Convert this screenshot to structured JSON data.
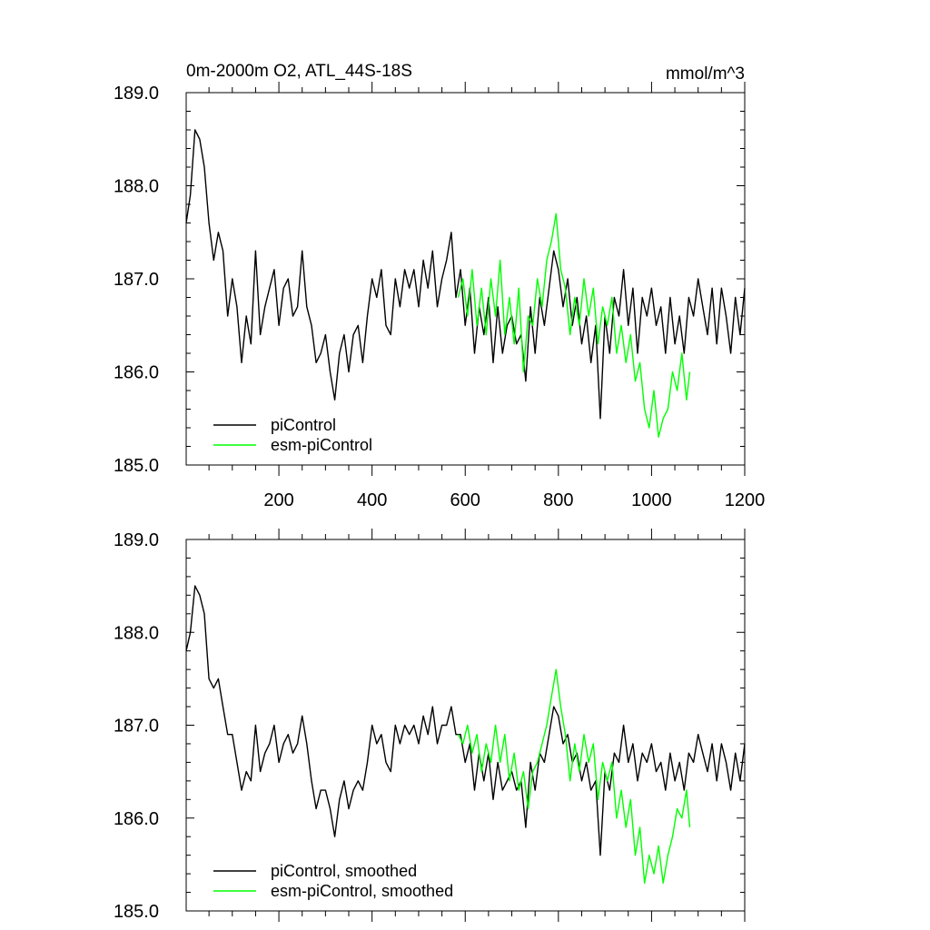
{
  "figure": {
    "title_left": "0m-2000m O2, ATL_44S-18S",
    "title_right": "mmol/m^3"
  },
  "colors": {
    "piControl": "#000000",
    "esm_piControl": "#00ff00",
    "axes": "#000000"
  },
  "chart_data": [
    {
      "type": "line",
      "xlim": [
        1,
        1200
      ],
      "ylim": [
        185.0,
        189.0
      ],
      "yticks": [
        "185.0",
        "186.0",
        "187.0",
        "188.0",
        "189.0"
      ],
      "xticks": [
        "200",
        "400",
        "600",
        "800",
        "1000",
        "1200"
      ],
      "legend_position": "bottom-left",
      "series": [
        {
          "name": "piControl",
          "color": "#000000",
          "x": [
            1,
            10,
            20,
            30,
            40,
            50,
            60,
            70,
            80,
            90,
            100,
            110,
            120,
            130,
            140,
            150,
            160,
            170,
            180,
            190,
            200,
            210,
            220,
            230,
            240,
            250,
            260,
            270,
            280,
            290,
            300,
            310,
            320,
            330,
            340,
            350,
            360,
            370,
            380,
            390,
            400,
            410,
            420,
            430,
            440,
            450,
            460,
            470,
            480,
            490,
            500,
            510,
            520,
            530,
            540,
            550,
            560,
            570,
            580,
            590,
            600,
            610,
            620,
            630,
            640,
            650,
            660,
            670,
            680,
            690,
            700,
            710,
            720,
            730,
            740,
            750,
            760,
            770,
            780,
            790,
            800,
            810,
            820,
            830,
            840,
            850,
            860,
            870,
            880,
            890,
            900,
            910,
            920,
            930,
            940,
            950,
            960,
            970,
            980,
            990,
            1000,
            1010,
            1020,
            1030,
            1040,
            1050,
            1060,
            1070,
            1080,
            1090,
            1100,
            1110,
            1120,
            1130,
            1140,
            1150,
            1160,
            1170,
            1180,
            1190,
            1200
          ],
          "y": [
            187.6,
            187.9,
            188.6,
            188.5,
            188.2,
            187.6,
            187.2,
            187.5,
            187.3,
            186.6,
            187.0,
            186.7,
            186.1,
            186.6,
            186.3,
            187.3,
            186.4,
            186.7,
            186.9,
            187.1,
            186.5,
            186.9,
            187.0,
            186.6,
            186.7,
            187.3,
            186.7,
            186.5,
            186.1,
            186.2,
            186.4,
            186.0,
            185.7,
            186.2,
            186.4,
            186.0,
            186.4,
            186.5,
            186.1,
            186.6,
            187.0,
            186.8,
            187.1,
            186.5,
            186.4,
            187.0,
            186.7,
            187.1,
            186.9,
            187.1,
            186.7,
            187.2,
            186.9,
            187.3,
            186.7,
            187.0,
            187.2,
            187.5,
            186.8,
            187.1,
            186.5,
            186.9,
            186.2,
            186.7,
            186.4,
            186.8,
            186.1,
            186.7,
            186.2,
            186.5,
            186.6,
            186.3,
            186.4,
            185.9,
            186.7,
            186.2,
            186.8,
            186.5,
            186.9,
            187.3,
            187.1,
            186.7,
            187.0,
            186.5,
            186.8,
            186.3,
            186.6,
            186.1,
            186.5,
            185.5,
            186.6,
            186.2,
            186.8,
            186.6,
            187.1,
            186.5,
            186.9,
            186.2,
            186.8,
            186.6,
            186.9,
            186.5,
            186.7,
            186.2,
            186.8,
            186.3,
            186.6,
            186.2,
            186.8,
            186.6,
            187.0,
            186.7,
            186.4,
            186.9,
            186.3,
            186.9,
            186.6,
            186.2,
            186.8,
            186.4,
            186.9
          ]
        },
        {
          "name": "esm-piControl",
          "color": "#00ff00",
          "x": [
            585,
            595,
            605,
            615,
            625,
            635,
            645,
            655,
            665,
            675,
            685,
            695,
            705,
            715,
            725,
            735,
            745,
            755,
            765,
            775,
            785,
            795,
            805,
            815,
            825,
            835,
            845,
            855,
            865,
            875,
            885,
            895,
            905,
            915,
            925,
            935,
            945,
            955,
            965,
            975,
            985,
            995,
            1005,
            1015,
            1025,
            1035,
            1045,
            1055,
            1065,
            1075,
            1082
          ],
          "y": [
            186.8,
            187.0,
            186.6,
            187.1,
            186.5,
            186.9,
            186.4,
            187.0,
            186.6,
            187.2,
            186.4,
            186.8,
            186.3,
            186.9,
            186.0,
            186.6,
            186.5,
            187.0,
            186.7,
            187.2,
            187.4,
            187.7,
            187.1,
            186.9,
            186.4,
            186.8,
            186.5,
            187.0,
            186.6,
            186.9,
            186.3,
            186.7,
            186.5,
            186.8,
            186.2,
            186.5,
            186.1,
            186.4,
            185.9,
            186.1,
            185.6,
            185.4,
            185.8,
            185.3,
            185.5,
            185.6,
            186.0,
            185.8,
            186.2,
            185.7,
            186.0
          ]
        }
      ],
      "legend": [
        "piControl",
        "esm-piControl"
      ]
    },
    {
      "type": "line",
      "xlim": [
        1,
        1200
      ],
      "ylim": [
        185.0,
        189.0
      ],
      "yticks": [
        "185.0",
        "186.0",
        "187.0",
        "188.0",
        "189.0"
      ],
      "legend_position": "bottom-left",
      "series": [
        {
          "name": "piControl, smoothed",
          "color": "#000000",
          "x": [
            1,
            10,
            20,
            30,
            40,
            50,
            60,
            70,
            80,
            90,
            100,
            110,
            120,
            130,
            140,
            150,
            160,
            170,
            180,
            190,
            200,
            210,
            220,
            230,
            240,
            250,
            260,
            270,
            280,
            290,
            300,
            310,
            320,
            330,
            340,
            350,
            360,
            370,
            380,
            390,
            400,
            410,
            420,
            430,
            440,
            450,
            460,
            470,
            480,
            490,
            500,
            510,
            520,
            530,
            540,
            550,
            560,
            570,
            580,
            590,
            600,
            610,
            620,
            630,
            640,
            650,
            660,
            670,
            680,
            690,
            700,
            710,
            720,
            730,
            740,
            750,
            760,
            770,
            780,
            790,
            800,
            810,
            820,
            830,
            840,
            850,
            860,
            870,
            880,
            890,
            900,
            910,
            920,
            930,
            940,
            950,
            960,
            970,
            980,
            990,
            1000,
            1010,
            1020,
            1030,
            1040,
            1050,
            1060,
            1070,
            1080,
            1090,
            1100,
            1110,
            1120,
            1130,
            1140,
            1150,
            1160,
            1170,
            1180,
            1190,
            1200
          ],
          "y": [
            187.8,
            188.0,
            188.5,
            188.4,
            188.2,
            187.5,
            187.4,
            187.5,
            187.2,
            186.9,
            186.9,
            186.6,
            186.3,
            186.5,
            186.4,
            187.0,
            186.5,
            186.7,
            186.8,
            187.0,
            186.6,
            186.8,
            186.9,
            186.7,
            186.8,
            187.1,
            186.8,
            186.4,
            186.1,
            186.3,
            186.3,
            186.1,
            185.8,
            186.2,
            186.4,
            186.1,
            186.3,
            186.4,
            186.3,
            186.6,
            187.0,
            186.8,
            186.9,
            186.6,
            186.5,
            187.0,
            186.8,
            187.0,
            186.9,
            187.0,
            186.8,
            187.1,
            186.9,
            187.2,
            186.8,
            187.0,
            187.0,
            187.2,
            186.9,
            186.9,
            186.6,
            186.8,
            186.3,
            186.7,
            186.4,
            186.7,
            186.2,
            186.6,
            186.3,
            186.4,
            186.5,
            186.3,
            186.4,
            185.9,
            186.6,
            186.3,
            186.7,
            186.6,
            186.9,
            187.2,
            187.1,
            186.8,
            186.9,
            186.6,
            186.7,
            186.4,
            186.6,
            186.3,
            186.4,
            185.6,
            186.5,
            186.3,
            186.7,
            186.6,
            187.0,
            186.6,
            186.8,
            186.4,
            186.7,
            186.6,
            186.8,
            186.5,
            186.6,
            186.3,
            186.7,
            186.4,
            186.6,
            186.3,
            186.7,
            186.6,
            186.9,
            186.7,
            186.5,
            186.8,
            186.4,
            186.8,
            186.6,
            186.3,
            186.7,
            186.4,
            186.8
          ]
        },
        {
          "name": "esm-piControl, smoothed",
          "color": "#00ff00",
          "x": [
            585,
            595,
            605,
            615,
            625,
            635,
            645,
            655,
            665,
            675,
            685,
            695,
            705,
            715,
            725,
            735,
            745,
            755,
            765,
            775,
            785,
            795,
            805,
            815,
            825,
            835,
            845,
            855,
            865,
            875,
            885,
            895,
            905,
            915,
            925,
            935,
            945,
            955,
            965,
            975,
            985,
            995,
            1005,
            1015,
            1025,
            1035,
            1045,
            1055,
            1065,
            1075,
            1082
          ],
          "y": [
            186.9,
            186.8,
            187.0,
            186.7,
            186.9,
            186.5,
            186.8,
            186.6,
            187.0,
            186.6,
            186.9,
            186.4,
            186.7,
            186.3,
            186.5,
            186.1,
            186.5,
            186.6,
            186.8,
            187.0,
            187.3,
            187.6,
            187.2,
            186.9,
            186.4,
            186.8,
            186.5,
            186.9,
            186.6,
            186.8,
            186.2,
            186.6,
            186.4,
            186.6,
            186.0,
            186.3,
            185.9,
            186.2,
            185.6,
            185.9,
            185.3,
            185.6,
            185.4,
            185.7,
            185.3,
            185.6,
            185.8,
            186.1,
            186.0,
            186.3,
            185.9
          ]
        }
      ],
      "legend": [
        "piControl, smoothed",
        "esm-piControl, smoothed"
      ]
    }
  ]
}
